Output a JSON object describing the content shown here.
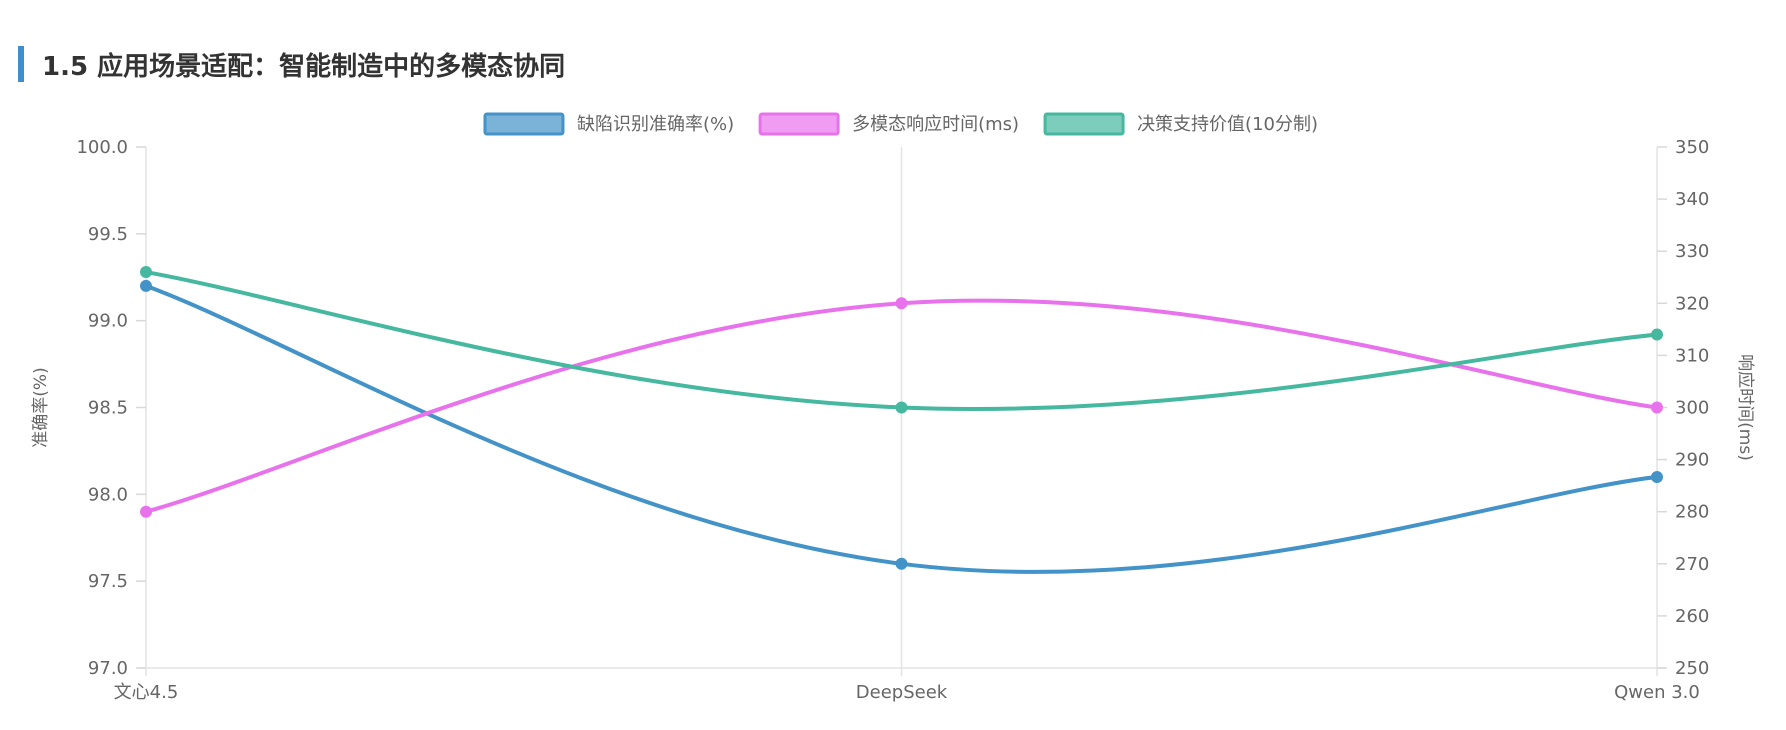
{
  "section": {
    "title": "1.5 应用场景适配：智能制造中的多模态协同"
  },
  "chart_data": {
    "type": "line",
    "categories": [
      "文心4.5",
      "DeepSeek",
      "Qwen 3.0"
    ],
    "series": [
      {
        "name": "缺陷识别准确率(%)",
        "axis": "left",
        "color": "#4393c8",
        "values": [
          99.2,
          97.6,
          98.1
        ]
      },
      {
        "name": "多模态响应时间(ms)",
        "axis": "right",
        "color": "#e872ec",
        "values": [
          280,
          320,
          300
        ]
      },
      {
        "name": "决策支持价值(10分制)",
        "axis": "left",
        "color": "#45b89f",
        "values": [
          99.28,
          98.5,
          98.92
        ]
      }
    ],
    "y_left": {
      "label": "准确率(%)",
      "min": 97.0,
      "max": 100.0,
      "ticks": [
        "97.0",
        "97.5",
        "98.0",
        "98.5",
        "99.0",
        "99.5",
        "100.0"
      ]
    },
    "y_right": {
      "label": "响应时间(ms)",
      "min": 250,
      "max": 350,
      "ticks": [
        "250",
        "260",
        "270",
        "280",
        "290",
        "300",
        "310",
        "320",
        "330",
        "340",
        "350"
      ]
    },
    "legend_position": "top-center",
    "grid": "vertical"
  }
}
